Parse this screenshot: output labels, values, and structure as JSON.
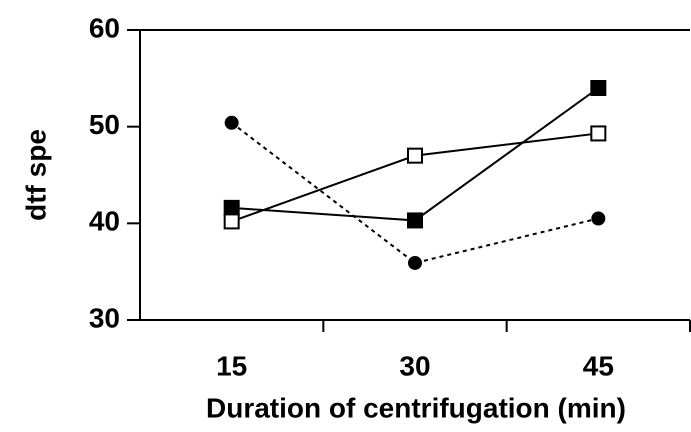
{
  "chart_data": {
    "type": "line",
    "x_label": "Duration of centrifugation (min)",
    "y_label": "dtf spe",
    "categories": [
      "15",
      "30",
      "45"
    ],
    "series": [
      {
        "color": "#000000",
        "marker": "square",
        "filled": true,
        "dashed": false,
        "values": [
          41.6,
          40.3,
          54.0
        ]
      },
      {
        "color": "#000000",
        "marker": "square",
        "filled": false,
        "dashed": false,
        "values": [
          40.2,
          47.0,
          49.3
        ]
      },
      {
        "color": "#000000",
        "marker": "circle",
        "filled": true,
        "dashed": true,
        "values": [
          50.4,
          35.9,
          40.5
        ]
      }
    ],
    "ylim": [
      30,
      60
    ],
    "yticks": [
      30,
      40,
      50,
      60
    ],
    "grid": false
  }
}
